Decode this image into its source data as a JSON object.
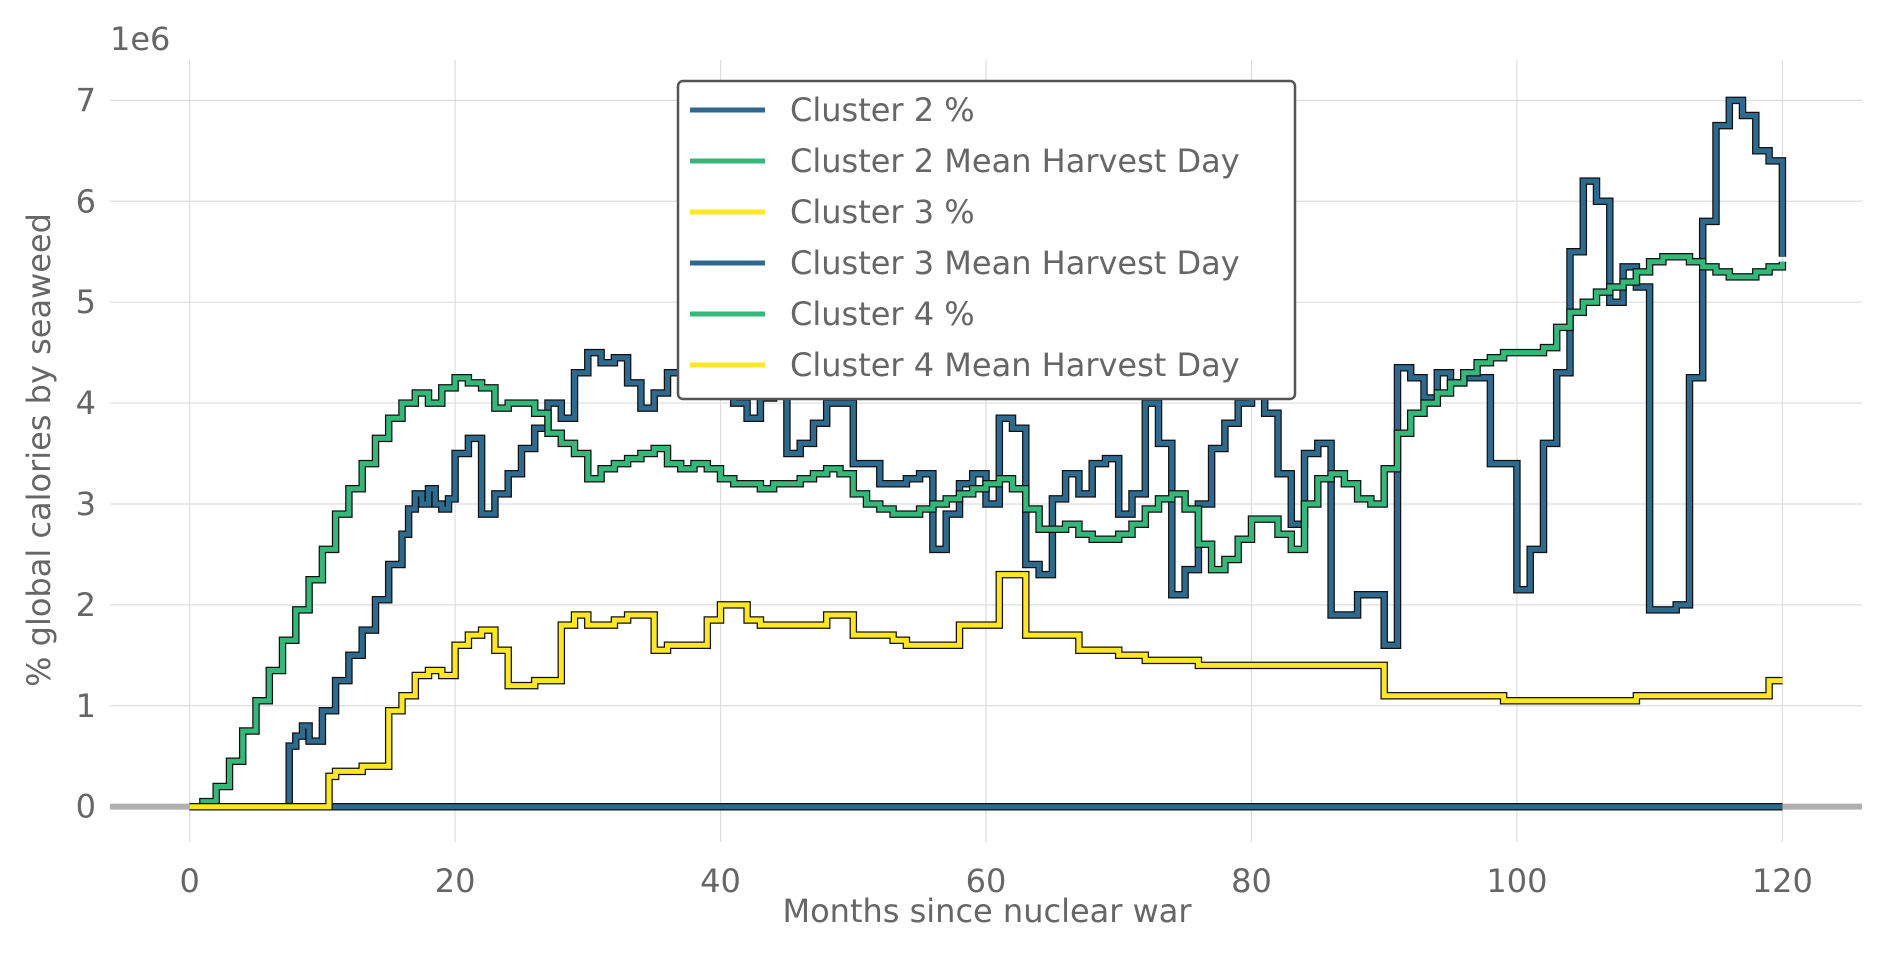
{
  "chart_data": {
    "type": "line",
    "step": true,
    "xlabel": "Months since nuclear war",
    "ylabel": "% global calories by seaweed",
    "y_offset_text": "1e6",
    "xlim": [
      -6,
      126
    ],
    "ylim": [
      -0.35,
      7.4
    ],
    "xticks": [
      0,
      20,
      40,
      60,
      80,
      100,
      120
    ],
    "yticks": [
      0,
      1,
      2,
      3,
      4,
      5,
      6,
      7
    ],
    "grid": true,
    "legend_position": "top-center",
    "series": [
      {
        "name": "Cluster 2 %",
        "color": "#2e6a8e",
        "x": [
          0,
          7.5,
          8,
          8.5,
          9,
          10,
          11,
          12,
          13,
          14,
          15,
          16,
          16.5,
          17,
          17.5,
          18,
          18.5,
          19,
          19.5,
          20,
          21,
          22,
          23,
          24,
          25,
          26,
          27,
          28,
          29,
          30,
          31,
          32,
          33,
          34,
          35,
          36,
          38,
          40,
          41,
          42,
          43,
          44,
          45,
          46,
          47,
          48,
          50,
          52,
          54,
          55,
          56,
          57,
          58,
          59,
          60,
          61,
          62,
          63,
          64,
          65,
          66,
          67,
          68,
          69,
          70,
          71,
          72,
          73,
          74,
          75,
          76,
          77,
          78,
          79,
          80,
          81,
          82,
          83,
          84,
          85,
          86,
          88,
          90,
          91,
          92,
          93,
          94,
          95,
          96,
          98,
          100,
          101,
          102,
          103,
          104,
          105,
          106,
          107,
          108,
          109,
          110,
          112,
          113,
          114,
          115,
          116,
          117,
          118,
          119,
          120
        ],
        "y": [
          0,
          0.6,
          0.7,
          0.8,
          0.65,
          0.95,
          1.25,
          1.5,
          1.75,
          2.05,
          2.4,
          2.7,
          2.95,
          3.1,
          3.0,
          3.15,
          3.0,
          2.95,
          3.05,
          3.5,
          3.65,
          2.9,
          3.1,
          3.3,
          3.55,
          3.75,
          4.0,
          3.85,
          4.3,
          4.5,
          4.4,
          4.45,
          4.2,
          3.95,
          4.1,
          4.3,
          4.2,
          4.1,
          4.0,
          3.85,
          4.05,
          4.3,
          3.5,
          3.6,
          3.8,
          4.0,
          3.4,
          3.2,
          3.25,
          3.3,
          2.55,
          2.9,
          3.2,
          3.3,
          3.0,
          3.85,
          3.75,
          2.4,
          2.3,
          3.05,
          3.3,
          3.1,
          3.4,
          3.45,
          2.9,
          3.1,
          4.0,
          3.6,
          2.1,
          2.35,
          3.0,
          3.55,
          3.8,
          4.0,
          4.5,
          3.9,
          3.3,
          2.8,
          3.5,
          3.6,
          1.9,
          2.1,
          1.6,
          4.35,
          4.25,
          4.05,
          4.3,
          4.2,
          4.25,
          3.4,
          2.15,
          2.55,
          3.6,
          4.3,
          5.5,
          6.2,
          6.0,
          5.0,
          5.35,
          5.15,
          1.95,
          2.0,
          4.25,
          5.8,
          6.75,
          7.0,
          6.85,
          6.5,
          6.4,
          5.45
        ]
      },
      {
        "name": "Cluster 2 Mean Harvest Day",
        "color": "#35b779",
        "x": [
          0,
          120
        ],
        "y": [
          0,
          0
        ]
      },
      {
        "name": "Cluster 3 %",
        "color": "#fde725",
        "x": [
          0,
          120
        ],
        "y": [
          0,
          0
        ]
      },
      {
        "name": "Cluster 3 Mean Harvest Day",
        "color": "#2e6a8e",
        "x": [
          0,
          120
        ],
        "y": [
          0,
          0
        ]
      },
      {
        "name": "Cluster 4 %",
        "color": "#35b779",
        "x": [
          0,
          1,
          2,
          3,
          4,
          5,
          6,
          7,
          8,
          9,
          10,
          11,
          12,
          13,
          14,
          15,
          16,
          17,
          18,
          19,
          20,
          21,
          22,
          23,
          24,
          25,
          26,
          27,
          28,
          29,
          30,
          31,
          32,
          33,
          34,
          35,
          36,
          37,
          38,
          39,
          40,
          41,
          42,
          43,
          44,
          45,
          46,
          47,
          48,
          49,
          50,
          51,
          52,
          53,
          54,
          55,
          56,
          57,
          58,
          59,
          60,
          61,
          62,
          63,
          64,
          65,
          66,
          67,
          68,
          69,
          70,
          71,
          72,
          73,
          74,
          75,
          76,
          77,
          78,
          79,
          80,
          81,
          82,
          83,
          84,
          85,
          86,
          87,
          88,
          89,
          90,
          91,
          92,
          93,
          94,
          95,
          96,
          97,
          98,
          99,
          100,
          101,
          102,
          103,
          104,
          105,
          106,
          107,
          108,
          109,
          110,
          111,
          112,
          113,
          114,
          115,
          116,
          117,
          118,
          119,
          120
        ],
        "y": [
          0,
          0.05,
          0.2,
          0.45,
          0.75,
          1.05,
          1.35,
          1.65,
          1.95,
          2.25,
          2.55,
          2.9,
          3.15,
          3.4,
          3.65,
          3.85,
          4.0,
          4.1,
          4.0,
          4.15,
          4.25,
          4.2,
          4.15,
          3.95,
          4.0,
          4.0,
          3.9,
          3.7,
          3.6,
          3.5,
          3.25,
          3.35,
          3.4,
          3.45,
          3.5,
          3.55,
          3.4,
          3.35,
          3.4,
          3.35,
          3.25,
          3.2,
          3.2,
          3.15,
          3.2,
          3.2,
          3.25,
          3.3,
          3.35,
          3.3,
          3.1,
          3.0,
          2.95,
          2.9,
          2.9,
          2.95,
          3.0,
          3.05,
          3.1,
          3.15,
          3.2,
          3.25,
          3.15,
          2.95,
          2.75,
          2.75,
          2.8,
          2.7,
          2.65,
          2.65,
          2.7,
          2.8,
          2.95,
          3.05,
          3.1,
          2.95,
          2.6,
          2.35,
          2.45,
          2.65,
          2.85,
          2.85,
          2.7,
          2.55,
          3.0,
          3.25,
          3.3,
          3.2,
          3.05,
          3.0,
          3.35,
          3.7,
          3.9,
          4.0,
          4.1,
          4.2,
          4.3,
          4.4,
          4.45,
          4.5,
          4.5,
          4.5,
          4.55,
          4.75,
          4.9,
          5.0,
          5.1,
          5.15,
          5.2,
          5.3,
          5.4,
          5.45,
          5.45,
          5.4,
          5.35,
          5.3,
          5.25,
          5.25,
          5.3,
          5.35,
          5.4
        ]
      },
      {
        "name": "Cluster 4 Mean Harvest Day",
        "color": "#fde725",
        "x": [
          0,
          10.5,
          11,
          12,
          13,
          15,
          16,
          17,
          18,
          19,
          20,
          21,
          22,
          23,
          24,
          26,
          28,
          29,
          30,
          32,
          33,
          35,
          36,
          38,
          39,
          40,
          42,
          43,
          45,
          46,
          48,
          50,
          51,
          53,
          54,
          56,
          58,
          60,
          61,
          62,
          63,
          65,
          67,
          68,
          70,
          72,
          74,
          76,
          78,
          80,
          82,
          84,
          86,
          88,
          90,
          91,
          93,
          95,
          97,
          99,
          101,
          103,
          105,
          107,
          109,
          111,
          113,
          115,
          117,
          119,
          120
        ],
        "y": [
          0,
          0.3,
          0.35,
          0.35,
          0.4,
          0.95,
          1.1,
          1.3,
          1.35,
          1.3,
          1.6,
          1.7,
          1.75,
          1.55,
          1.2,
          1.25,
          1.8,
          1.9,
          1.8,
          1.85,
          1.9,
          1.55,
          1.6,
          1.6,
          1.85,
          2.0,
          1.85,
          1.8,
          1.8,
          1.8,
          1.9,
          1.7,
          1.7,
          1.65,
          1.6,
          1.6,
          1.8,
          1.8,
          2.3,
          2.3,
          1.7,
          1.7,
          1.55,
          1.55,
          1.5,
          1.45,
          1.45,
          1.4,
          1.4,
          1.4,
          1.4,
          1.4,
          1.4,
          1.4,
          1.1,
          1.1,
          1.1,
          1.1,
          1.1,
          1.05,
          1.05,
          1.05,
          1.05,
          1.05,
          1.1,
          1.1,
          1.1,
          1.1,
          1.1,
          1.25,
          1.25
        ]
      }
    ]
  }
}
